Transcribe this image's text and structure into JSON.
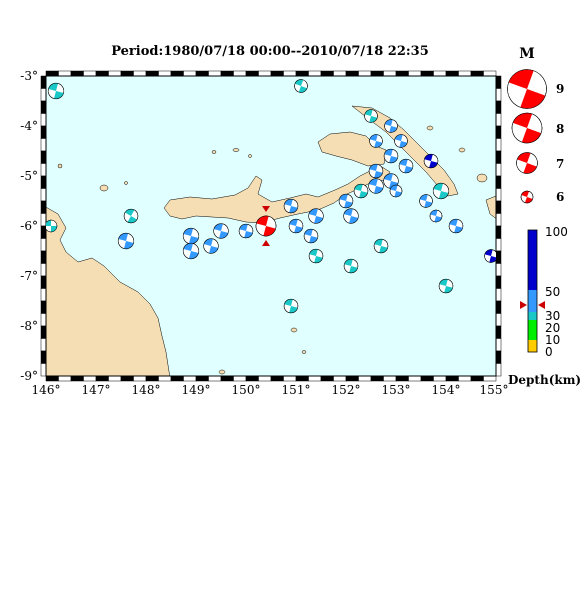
{
  "title": "Period:1980/07/18 00:00--2010/07/18 22:35",
  "colors": {
    "sea": "#e0ffff",
    "land": "#f5deb3",
    "mag_legend": "#ff0000",
    "shallow": "#3399ff",
    "cyan": "#1ac8c8",
    "green": "#00ee00",
    "deep": "#0000cc"
  },
  "lon_labels": [
    "146°",
    "147°",
    "148°",
    "149°",
    "150°",
    "151°",
    "152°",
    "153°",
    "154°",
    "155°"
  ],
  "lat_labels": [
    "-3°",
    "-4°",
    "-5°",
    "-6°",
    "-7°",
    "-8°",
    "-9°"
  ],
  "magnitude_legend": {
    "header": "M",
    "items": [
      {
        "label": "9",
        "mag": 9
      },
      {
        "label": "8",
        "mag": 8
      },
      {
        "label": "7",
        "mag": 7
      },
      {
        "label": "6",
        "mag": 6
      }
    ]
  },
  "depth_scale": {
    "label": "Depth(km)",
    "ticks": [
      "100",
      "50",
      "30",
      "20",
      "10",
      "0"
    ],
    "marker_depth_km": 40
  },
  "events": [
    {
      "lon": 146.2,
      "lat": -3.3,
      "mag": 6.4,
      "depth": 25,
      "rot": 15
    },
    {
      "lon": 151.1,
      "lat": -3.2,
      "mag": 6.1,
      "depth": 25,
      "rot": 20
    },
    {
      "lon": 146.1,
      "lat": -6.0,
      "mag": 6.0,
      "depth": 25,
      "rot": 0
    },
    {
      "lon": 147.7,
      "lat": -5.8,
      "mag": 6.2,
      "depth": 25,
      "rot": 30
    },
    {
      "lon": 147.6,
      "lat": -6.3,
      "mag": 6.4,
      "depth": 40,
      "rot": 15
    },
    {
      "lon": 148.9,
      "lat": -6.2,
      "mag": 6.4,
      "depth": 40,
      "rot": 15
    },
    {
      "lon": 148.9,
      "lat": -6.5,
      "mag": 6.4,
      "depth": 40,
      "rot": 15
    },
    {
      "lon": 149.5,
      "lat": -6.1,
      "mag": 6.3,
      "depth": 40,
      "rot": 15
    },
    {
      "lon": 149.3,
      "lat": -6.4,
      "mag": 6.3,
      "depth": 40,
      "rot": 15
    },
    {
      "lon": 150.0,
      "lat": -6.1,
      "mag": 6.2,
      "depth": 40,
      "rot": 15
    },
    {
      "lon": 150.9,
      "lat": -5.6,
      "mag": 6.2,
      "depth": 30,
      "rot": 15
    },
    {
      "lon": 151.0,
      "lat": -6.0,
      "mag": 6.2,
      "depth": 40,
      "rot": 15
    },
    {
      "lon": 151.3,
      "lat": -6.2,
      "mag": 6.2,
      "depth": 40,
      "rot": 15
    },
    {
      "lon": 151.4,
      "lat": -5.8,
      "mag": 6.3,
      "depth": 40,
      "rot": 15
    },
    {
      "lon": 152.0,
      "lat": -5.5,
      "mag": 6.2,
      "depth": 40,
      "rot": 15
    },
    {
      "lon": 152.1,
      "lat": -5.8,
      "mag": 6.3,
      "depth": 30,
      "rot": 15
    },
    {
      "lon": 152.3,
      "lat": -5.3,
      "mag": 6.2,
      "depth": 20,
      "rot": 15
    },
    {
      "lon": 152.6,
      "lat": -5.2,
      "mag": 6.3,
      "depth": 40,
      "rot": 15
    },
    {
      "lon": 152.9,
      "lat": -5.1,
      "mag": 6.3,
      "depth": 30,
      "rot": 15
    },
    {
      "lon": 152.5,
      "lat": -3.8,
      "mag": 6.1,
      "depth": 25,
      "rot": 15
    },
    {
      "lon": 152.9,
      "lat": -4.0,
      "mag": 6.1,
      "depth": 40,
      "rot": 15
    },
    {
      "lon": 152.6,
      "lat": -4.3,
      "mag": 6.1,
      "depth": 40,
      "rot": 15
    },
    {
      "lon": 152.9,
      "lat": -4.6,
      "mag": 6.2,
      "depth": 40,
      "rot": 15
    },
    {
      "lon": 153.1,
      "lat": -4.3,
      "mag": 6.1,
      "depth": 40,
      "rot": 15
    },
    {
      "lon": 153.2,
      "lat": -4.8,
      "mag": 6.2,
      "depth": 40,
      "rot": 15
    },
    {
      "lon": 153.0,
      "lat": -5.3,
      "mag": 6.0,
      "depth": 40,
      "rot": 15
    },
    {
      "lon": 152.6,
      "lat": -4.9,
      "mag": 6.2,
      "depth": 30,
      "rot": 15
    },
    {
      "lon": 153.7,
      "lat": -4.7,
      "mag": 6.2,
      "depth": 70,
      "rot": 15
    },
    {
      "lon": 153.9,
      "lat": -5.3,
      "mag": 6.4,
      "depth": 25,
      "rot": 15
    },
    {
      "lon": 153.6,
      "lat": -5.5,
      "mag": 6.1,
      "depth": 40,
      "rot": 15
    },
    {
      "lon": 153.8,
      "lat": -5.8,
      "mag": 6.0,
      "depth": 40,
      "rot": 15
    },
    {
      "lon": 154.2,
      "lat": -6.0,
      "mag": 6.2,
      "depth": 40,
      "rot": 15
    },
    {
      "lon": 152.1,
      "lat": -6.8,
      "mag": 6.2,
      "depth": 25,
      "rot": 15
    },
    {
      "lon": 152.7,
      "lat": -6.4,
      "mag": 6.2,
      "depth": 25,
      "rot": 15
    },
    {
      "lon": 151.4,
      "lat": -6.6,
      "mag": 6.2,
      "depth": 25,
      "rot": 15
    },
    {
      "lon": 150.9,
      "lat": -7.6,
      "mag": 6.2,
      "depth": 25,
      "rot": 15
    },
    {
      "lon": 154.0,
      "lat": -7.2,
      "mag": 6.2,
      "depth": 25,
      "rot": 15
    },
    {
      "lon": 154.9,
      "lat": -6.6,
      "mag": 6.1,
      "depth": 90,
      "rot": 15
    },
    {
      "lon": 150.4,
      "lat": -6.0,
      "mag": 6.9,
      "depth": 0,
      "rot": 15,
      "latest": true
    }
  ]
}
